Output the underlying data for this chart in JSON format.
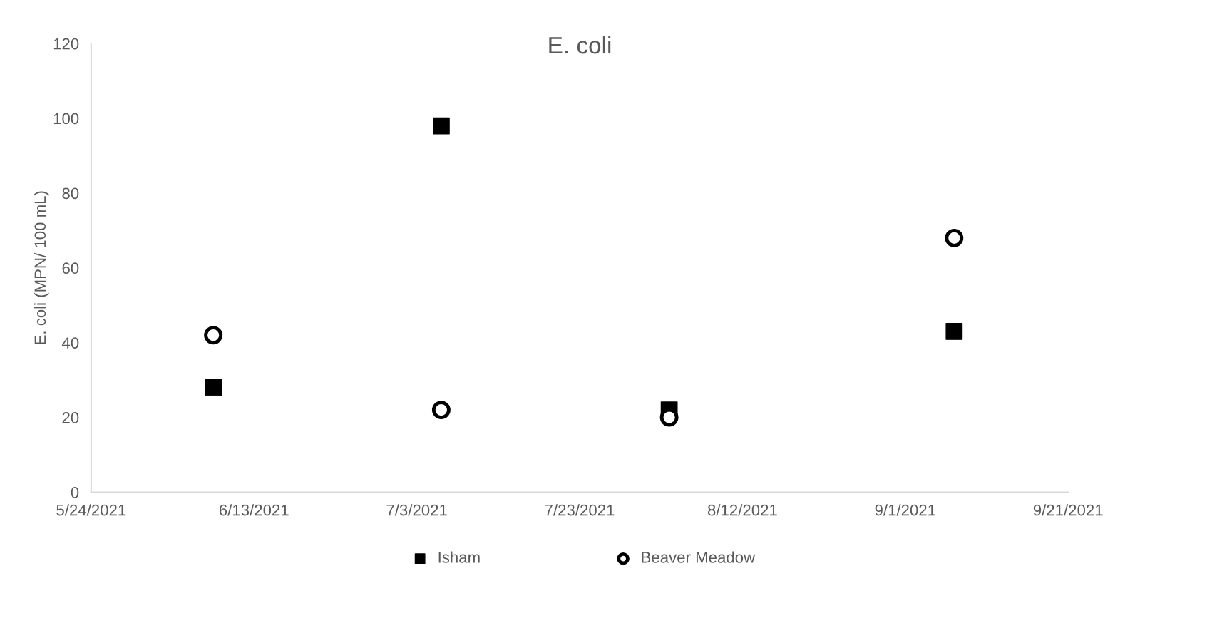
{
  "chart_data": {
    "type": "scatter",
    "title": "E. coli",
    "ylabel": "E. coli (MPN/ 100 mL)",
    "xlim": [
      "2021-05-24",
      "2021-09-21"
    ],
    "xticks": [
      {
        "value": "2021-05-24",
        "label": "5/24/2021"
      },
      {
        "value": "2021-06-13",
        "label": "6/13/2021"
      },
      {
        "value": "2021-07-03",
        "label": "7/3/2021"
      },
      {
        "value": "2021-07-23",
        "label": "7/23/2021"
      },
      {
        "value": "2021-08-12",
        "label": "8/12/2021"
      },
      {
        "value": "2021-09-01",
        "label": "9/1/2021"
      },
      {
        "value": "2021-09-21",
        "label": "9/21/2021"
      }
    ],
    "ylim": [
      0,
      120
    ],
    "yticks": [
      0,
      20,
      40,
      60,
      80,
      100,
      120
    ],
    "grid": false,
    "legend": "bottom",
    "series": [
      {
        "name": "Isham",
        "color": "#000000",
        "marker": "square",
        "x": [
          "2021-06-08",
          "2021-07-06",
          "2021-08-03",
          "2021-09-07"
        ],
        "values": [
          28,
          98,
          22,
          43
        ]
      },
      {
        "name": "Beaver Meadow",
        "color": "#000000",
        "marker": "circle",
        "x": [
          "2021-06-08",
          "2021-07-06",
          "2021-08-03",
          "2021-09-07"
        ],
        "values": [
          42,
          22,
          20,
          68
        ]
      }
    ]
  }
}
